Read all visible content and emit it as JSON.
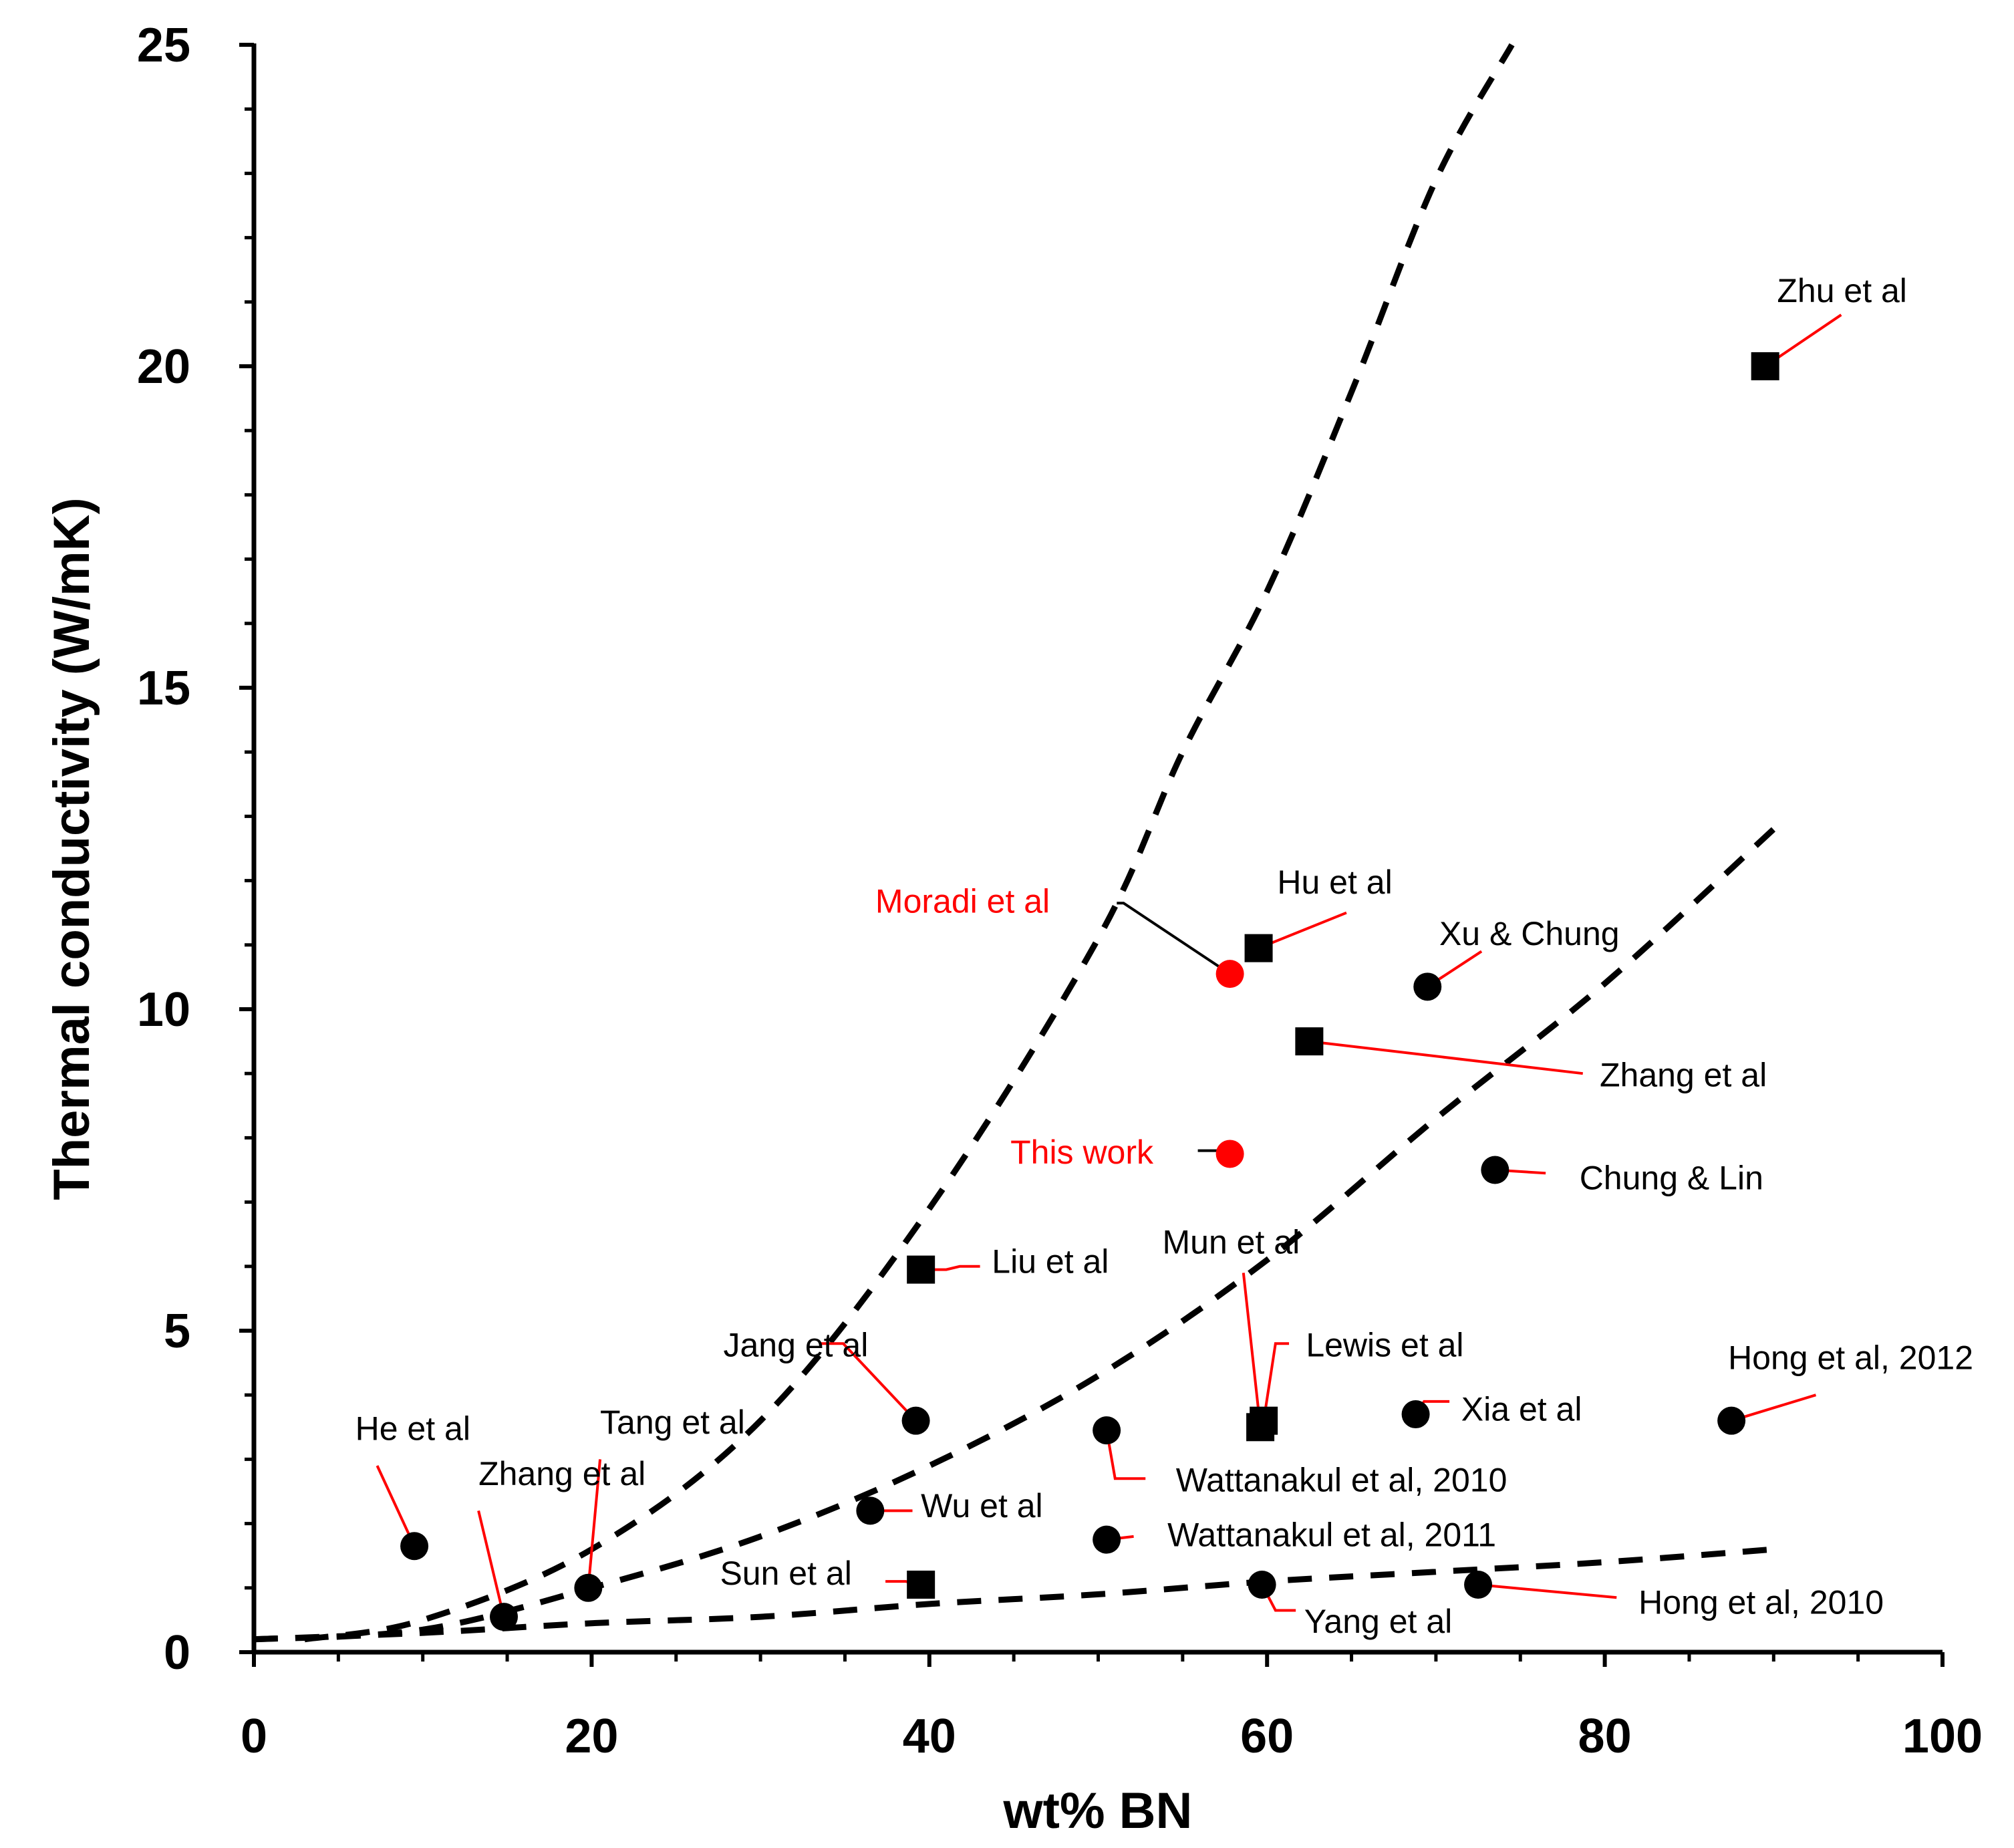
{
  "chart_data": {
    "type": "scatter",
    "title": "",
    "xlabel": "wt% BN",
    "ylabel": "Thermal conductivity (W/mK)",
    "xlim": [
      0,
      100
    ],
    "ylim": [
      0,
      25
    ],
    "x_ticks": [
      0,
      20,
      40,
      60,
      80,
      100
    ],
    "y_ticks": [
      0,
      5,
      10,
      15,
      20,
      25
    ],
    "grid": false,
    "colors": {
      "highlight": "#ff0000",
      "default": "#000000",
      "leader_default": "#ff0000"
    },
    "points": [
      {
        "label": "He et al",
        "x": 9.5,
        "y": 1.65,
        "marker": "circle",
        "color": "#000000",
        "label_x": 6,
        "label_y": 3.3,
        "text_color": "#000000",
        "leader": [
          [
            7.3,
            2.9
          ],
          [
            9.5,
            1.65
          ]
        ]
      },
      {
        "label": "Zhang et al",
        "x": 14.8,
        "y": 0.55,
        "marker": "circle",
        "color": "#000000",
        "label_x": 13.3,
        "label_y": 2.6,
        "text_color": "#000000",
        "leader": [
          [
            13.3,
            2.2
          ],
          [
            14.8,
            0.55
          ]
        ]
      },
      {
        "label": "Tang et al",
        "x": 19.8,
        "y": 1.0,
        "marker": "circle",
        "color": "#000000",
        "label_x": 20.5,
        "label_y": 3.4,
        "text_color": "#000000",
        "leader": [
          [
            20.5,
            3.0
          ],
          [
            19.8,
            1.0
          ]
        ]
      },
      {
        "label": "Jang et al",
        "x": 39.2,
        "y": 3.6,
        "marker": "circle",
        "color": "#000000",
        "label_x": 27.8,
        "label_y": 4.6,
        "text_color": "#000000",
        "leader": [
          [
            33.5,
            4.8
          ],
          [
            34.9,
            4.8
          ],
          [
            39.2,
            3.6
          ]
        ]
      },
      {
        "label": "Wu et al",
        "x": 36.5,
        "y": 2.2,
        "marker": "circle",
        "color": "#000000",
        "label_x": 39.5,
        "label_y": 2.1,
        "text_color": "#000000",
        "leader": [
          [
            36.5,
            2.2
          ],
          [
            39.0,
            2.2
          ]
        ]
      },
      {
        "label": "Sun et al",
        "x": 39.5,
        "y": 1.05,
        "marker": "square",
        "color": "#000000",
        "label_x": 27.6,
        "label_y": 1.05,
        "text_color": "#000000",
        "leader": [
          [
            37.4,
            1.1
          ],
          [
            38.6,
            1.1
          ],
          [
            39.5,
            1.05
          ]
        ]
      },
      {
        "label": "Liu et al",
        "x": 39.5,
        "y": 5.95,
        "marker": "square",
        "color": "#000000",
        "label_x": 43.7,
        "label_y": 5.9,
        "text_color": "#000000",
        "leader": [
          [
            39.5,
            5.95
          ],
          [
            41.0,
            5.95
          ],
          [
            41.8,
            6.0
          ],
          [
            43.0,
            6.0
          ]
        ]
      },
      {
        "label": "Moradi et al",
        "x": 57.8,
        "y": 10.55,
        "marker": "circle",
        "color": "#ff0000",
        "label_x": 36.8,
        "label_y": 11.5,
        "text_color": "#ff0000",
        "leader": [
          [
            51.1,
            11.65
          ],
          [
            51.5,
            11.65
          ],
          [
            57.8,
            10.55
          ]
        ],
        "leader_color": "#000000"
      },
      {
        "label": "This work",
        "x": 57.8,
        "y": 7.75,
        "marker": "circle",
        "color": "#ff0000",
        "label_x": 44.8,
        "label_y": 7.6,
        "text_color": "#ff0000",
        "leader": [
          [
            55.9,
            7.8
          ],
          [
            57.2,
            7.8
          ],
          [
            57.8,
            7.75
          ]
        ],
        "leader_color": "#000000"
      },
      {
        "label": "Hu et al",
        "x": 59.5,
        "y": 10.95,
        "marker": "square",
        "color": "#000000",
        "label_x": 60.6,
        "label_y": 11.8,
        "text_color": "#000000",
        "leader": [
          [
            59.5,
            10.95
          ],
          [
            64.7,
            11.5
          ]
        ]
      },
      {
        "label": "Mun et al",
        "x": 59.6,
        "y": 3.5,
        "marker": "square",
        "color": "#000000",
        "label_x": 53.8,
        "label_y": 6.2,
        "text_color": "#000000",
        "leader": [
          [
            58.6,
            5.9
          ],
          [
            59.6,
            3.5
          ]
        ]
      },
      {
        "label": "Lewis et al",
        "x": 59.8,
        "y": 3.6,
        "marker": "square",
        "color": "#000000",
        "label_x": 62.3,
        "label_y": 4.6,
        "text_color": "#000000",
        "leader": [
          [
            61.3,
            4.8
          ],
          [
            60.5,
            4.8
          ],
          [
            59.8,
            3.6
          ]
        ]
      },
      {
        "label": "Wattanakul et al, 2010",
        "x": 50.5,
        "y": 3.45,
        "marker": "circle",
        "color": "#000000",
        "label_x": 54.6,
        "label_y": 2.5,
        "text_color": "#000000",
        "leader": [
          [
            50.5,
            3.45
          ],
          [
            51.0,
            2.7
          ],
          [
            52.8,
            2.7
          ]
        ]
      },
      {
        "label": "Wattanakul et al, 2011",
        "x": 50.5,
        "y": 1.75,
        "marker": "circle",
        "color": "#000000",
        "label_x": 54.1,
        "label_y": 1.65,
        "text_color": "#000000",
        "leader": [
          [
            50.5,
            1.75
          ],
          [
            52.1,
            1.8
          ]
        ]
      },
      {
        "label": "Yang et al",
        "x": 59.7,
        "y": 1.05,
        "marker": "circle",
        "color": "#000000",
        "label_x": 62.2,
        "label_y": 0.3,
        "text_color": "#000000",
        "leader": [
          [
            59.7,
            1.05
          ],
          [
            60.5,
            0.65
          ],
          [
            61.7,
            0.65
          ]
        ]
      },
      {
        "label": "Xu & Chung",
        "x": 69.5,
        "y": 10.35,
        "marker": "circle",
        "color": "#000000",
        "label_x": 70.2,
        "label_y": 11.0,
        "text_color": "#000000",
        "leader": [
          [
            69.5,
            10.35
          ],
          [
            72.7,
            10.9
          ]
        ]
      },
      {
        "label": "Zhang et al",
        "x": 62.5,
        "y": 9.5,
        "marker": "square",
        "color": "#000000",
        "label_x": 79.7,
        "label_y": 8.8,
        "text_color": "#000000",
        "leader": [
          [
            62.5,
            9.5
          ],
          [
            78.7,
            9.0
          ]
        ]
      },
      {
        "label": "Chung & Lin",
        "x": 73.5,
        "y": 7.5,
        "marker": "circle",
        "color": "#000000",
        "label_x": 78.5,
        "label_y": 7.2,
        "text_color": "#000000",
        "leader": [
          [
            73.5,
            7.5
          ],
          [
            76.5,
            7.45
          ]
        ]
      },
      {
        "label": "Xia et al",
        "x": 68.8,
        "y": 3.7,
        "marker": "circle",
        "color": "#000000",
        "label_x": 71.5,
        "label_y": 3.6,
        "text_color": "#000000",
        "leader": [
          [
            68.8,
            3.7
          ],
          [
            69.3,
            3.9
          ],
          [
            70.8,
            3.9
          ]
        ]
      },
      {
        "label": "Hong et al, 2012",
        "x": 87.5,
        "y": 3.6,
        "marker": "circle",
        "color": "#000000",
        "label_x": 87.3,
        "label_y": 4.4,
        "text_color": "#000000",
        "leader": [
          [
            87.5,
            3.6
          ],
          [
            92.5,
            4.0
          ]
        ]
      },
      {
        "label": "Hong et al, 2010",
        "x": 72.5,
        "y": 1.05,
        "marker": "circle",
        "color": "#000000",
        "label_x": 82.0,
        "label_y": 0.6,
        "text_color": "#000000",
        "leader": [
          [
            72.5,
            1.05
          ],
          [
            80.7,
            0.85
          ]
        ]
      },
      {
        "label": "Zhu et al",
        "x": 89.5,
        "y": 20.0,
        "marker": "square",
        "color": "#000000",
        "label_x": 90.2,
        "label_y": 21.0,
        "text_color": "#000000",
        "leader": [
          [
            89.5,
            20.0
          ],
          [
            94.0,
            20.8
          ]
        ]
      }
    ],
    "trend_lines": [
      {
        "name": "upper",
        "style": "dashed",
        "x": [
          3,
          10,
          20,
          30,
          40,
          50,
          55,
          60,
          65,
          70,
          74.5
        ],
        "y": [
          0.2,
          0.5,
          1.6,
          3.6,
          6.9,
          11.1,
          14.0,
          16.5,
          19.6,
          22.9,
          25.0
        ]
      },
      {
        "name": "middle",
        "style": "dashed",
        "x": [
          0,
          10,
          20,
          30,
          40,
          50,
          60,
          70,
          80,
          90
        ],
        "y": [
          0.2,
          0.35,
          1.0,
          1.8,
          2.9,
          4.3,
          6.1,
          8.3,
          10.4,
          12.8
        ]
      },
      {
        "name": "lower",
        "style": "dashed",
        "x": [
          0,
          10,
          20,
          30,
          40,
          50,
          60,
          70,
          80,
          90
        ],
        "y": [
          0.2,
          0.3,
          0.45,
          0.55,
          0.75,
          0.9,
          1.1,
          1.25,
          1.4,
          1.6
        ]
      }
    ]
  }
}
